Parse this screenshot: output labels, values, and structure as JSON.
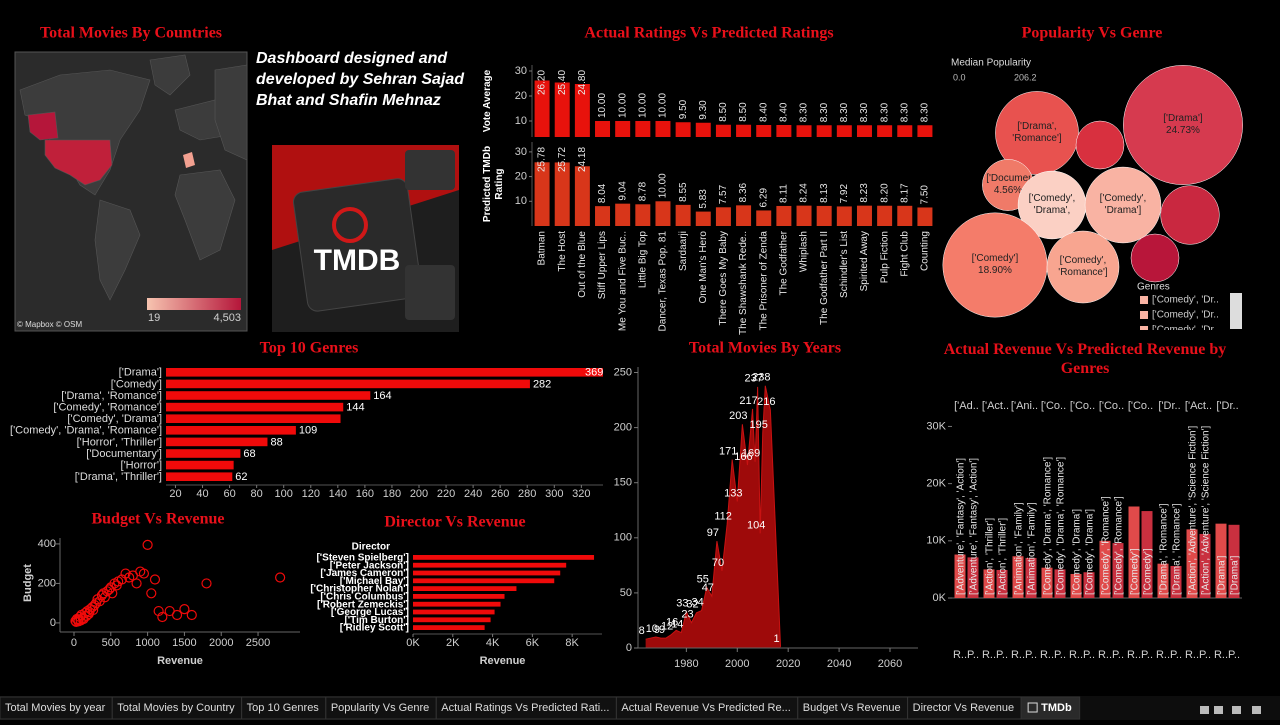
{
  "credit": "Dashboard designed and developed by Sehran Sajad Bhat and Shafin Mehnaz",
  "logo_text": "TMDB",
  "tabs": [
    "Total Movies by year",
    "Total Movies by Country",
    "Top 10 Genres",
    "Popularity Vs Genre",
    "Actual Ratings Vs Predicted Rati...",
    "Actual Revenue Vs Predicted Re...",
    "Budget Vs Revenue",
    "Director Vs Revenue",
    "TMDb"
  ],
  "active_tab": 8,
  "chart_data": [
    {
      "type": "map",
      "title": "Total Movies By Countries",
      "legend_ticks": [
        19,
        {
          "value": 4503,
          "label": "4,503"
        }
      ],
      "legend_colors": [
        "#f7c4b0",
        "#b5163a"
      ],
      "attribution": "© Mapbox © OSM"
    },
    {
      "type": "paired_bar",
      "title": "Actual Ratings Vs Predicted Ratings",
      "categories": [
        "Batman",
        "The Host",
        "Out of the Blue",
        "Stiff Upper Lips",
        "Me You and Five Buc..",
        "Little Big Top",
        "Dancer, Texas Pop. 81",
        "Sardaarji",
        "One Man's Hero",
        "There Goes My Baby",
        "The Shawshank Rede..",
        "The Prisoner of Zenda",
        "The Godfather",
        "Whiplash",
        "The Godfather Part II",
        "Schindler's List",
        "Spirited Away",
        "Pulp Fiction",
        "Fight Club",
        "Counting"
      ],
      "series": [
        {
          "name": "Vote Average",
          "color": "#e8120c",
          "ylim": [
            3.6,
            32.4
          ],
          "yticks": [
            10,
            20,
            30
          ],
          "values": [
            26.2,
            25.4,
            24.8,
            10,
            10,
            10,
            10,
            9.5,
            9.3,
            8.5,
            8.5,
            8.4,
            8.4,
            8.3,
            8.3,
            8.3,
            8.3,
            8.3,
            8.3,
            8.3
          ],
          "value_labels": [
            "26.20",
            "25.40",
            "24.80",
            "10.00",
            "10.00",
            "10.00",
            "10.00",
            "9.50",
            "9.30",
            "8.50",
            "8.50",
            "8.40",
            "8.40",
            "8.30",
            "8.30",
            "8.30",
            "8.30",
            "8.30",
            "8.30",
            "8.30"
          ]
        },
        {
          "name": "Predicted TMDb Rating",
          "color": "#d8361a",
          "ylim": [
            0,
            34
          ],
          "yticks": [
            10,
            20,
            30
          ],
          "values": [
            25.78,
            25.72,
            24.18,
            8.04,
            9.04,
            8.78,
            10,
            8.55,
            5.83,
            7.57,
            8.36,
            6.29,
            8.11,
            8.24,
            8.13,
            7.92,
            8.23,
            8.2,
            8.17,
            7.5
          ],
          "value_labels": [
            "25.78",
            "25.72",
            "24.18",
            "8.04",
            "9.04",
            "8.78",
            "10.00",
            "8.55",
            "5.83",
            "7.57",
            "8.36",
            "6.29",
            "8.11",
            "8.24",
            "8.13",
            "7.92",
            "8.23",
            "8.20",
            "8.17",
            "7.50"
          ]
        }
      ]
    },
    {
      "type": "bubble",
      "title": "Popularity Vs Genre",
      "color_legend_title": "Median Popularity",
      "color_legend_ticks": [
        {
          "value": 0,
          "label": "0.0"
        },
        206.2
      ],
      "categories": [
        "['Drama']",
        "['Drama', 'Romance']",
        null,
        "['Documentary']",
        "['Comedy', 'Drama',",
        "['Comedy', 'Drama']",
        null,
        "['Comedy']",
        "['Comedy', 'Romance']",
        null
      ],
      "values": [
        24.73,
        12,
        4,
        4.56,
        8,
        10,
        6,
        18.9,
        9,
        4
      ],
      "value_labels": [
        "24.73%",
        null,
        null,
        "4.56%",
        null,
        null,
        null,
        "18.90%",
        null,
        null
      ],
      "colors": [
        "#d63a4f",
        "#e8524f",
        "#d8303f",
        "#f07a68",
        "#fbd0c4",
        "#f9b3a3",
        "#c92840",
        "#f47c6a",
        "#f8a590",
        "#b8163a"
      ],
      "legend_title": "Genres",
      "legend_items": [
        "['Comedy', 'Dr..",
        "['Comedy', 'Dr..",
        "['Comedy', 'Dr.."
      ]
    },
    {
      "type": "hbar",
      "title": "Top 10 Genres",
      "color": "#f00a0a",
      "categories": [
        "['Drama']",
        "['Comedy']",
        "['Drama', 'Romance']",
        "['Comedy', 'Romance']",
        "['Comedy', 'Drama']",
        "['Comedy', 'Drama', 'Romance']",
        "['Horror', 'Thriller']",
        "['Documentary']",
        "['Horror']",
        "['Drama', 'Thriller']"
      ],
      "values": [
        369,
        282,
        164,
        144,
        142,
        109,
        88,
        68,
        63,
        62
      ],
      "value_labels": [
        "369",
        "282",
        "164",
        "144",
        null,
        "109",
        "88",
        "68",
        null,
        "62"
      ],
      "xlim": [
        13,
        336
      ],
      "xticks": [
        20,
        40,
        60,
        80,
        100,
        120,
        140,
        160,
        180,
        200,
        220,
        240,
        260,
        280,
        300,
        320
      ]
    },
    {
      "type": "area",
      "title": "Total Movies By Years",
      "color": "#9e0a0a",
      "x": [
        1964,
        1968,
        1970,
        1972,
        1974,
        1976,
        1978,
        1980,
        1982,
        1984,
        1986,
        1988,
        1990,
        1992,
        1994,
        1996,
        1998,
        2000,
        2002,
        2004,
        2006,
        2007,
        2008,
        2009,
        2010,
        2011,
        2013,
        2017
      ],
      "values": [
        8,
        10,
        9,
        9,
        12,
        16,
        14,
        33,
        23,
        32,
        34,
        55,
        47,
        97,
        70,
        112,
        171,
        133,
        203,
        166,
        217,
        169,
        237,
        104,
        195,
        238,
        216,
        1
      ],
      "xlim": [
        1961,
        2071
      ],
      "xticks": [
        1980,
        2000,
        2020,
        2040,
        2060
      ],
      "ylim": [
        0,
        255
      ],
      "yticks": [
        0,
        50,
        100,
        150,
        200,
        250
      ]
    },
    {
      "type": "grouped_bar",
      "title": "Actual Revenue Vs Predicted Revenue by Genres",
      "categories": [
        "['Ad..",
        "['Act..",
        "['Ani..",
        "['Co..",
        "['Co..",
        "['Co..",
        "['Co..",
        "['Dr..",
        "['Act..",
        "['Dr.."
      ],
      "genre_labels": [
        "['Adventure', 'Fantasy', 'Action']",
        "['Action', 'Thriller']",
        "['Animation', 'Family']",
        "['Comedy', 'Drama', 'Romance']",
        "['Comedy', 'Drama']",
        "['Comedy', 'Romance']",
        "['Comedy']",
        "['Drama', 'Romance']",
        "['Action', 'Adventure', 'Science Fiction']",
        "['Drama']"
      ],
      "series": [
        {
          "name": "R..",
          "color": "#e04a4a",
          "values": [
            7600,
            5000,
            7300,
            5300,
            4200,
            10000,
            16000,
            6000,
            12000,
            13000
          ]
        },
        {
          "name": "P..",
          "color": "#c9303f",
          "values": [
            7100,
            4900,
            7000,
            5000,
            4500,
            9600,
            15200,
            5600,
            11200,
            12800
          ]
        }
      ],
      "ylim": [
        0,
        32000
      ],
      "yticks": [
        {
          "value": 0,
          "label": "0K"
        },
        {
          "value": 10000,
          "label": "10K"
        },
        {
          "value": 20000,
          "label": "20K"
        },
        {
          "value": 30000,
          "label": "30K"
        }
      ]
    },
    {
      "type": "scatter",
      "title": "Budget Vs Revenue",
      "color": "#f00a0a",
      "x_label": "Revenue",
      "y_label": "Budget",
      "x": [
        20,
        40,
        60,
        80,
        100,
        120,
        150,
        180,
        200,
        220,
        250,
        280,
        300,
        320,
        350,
        380,
        400,
        420,
        450,
        480,
        500,
        520,
        550,
        580,
        600,
        650,
        700,
        750,
        800,
        850,
        900,
        950,
        1000,
        1050,
        1100,
        1150,
        1200,
        1300,
        1400,
        1500,
        1600,
        1800,
        2800,
        30,
        60,
        90,
        130,
        170,
        210,
        260
      ],
      "values": [
        10,
        20,
        15,
        30,
        40,
        25,
        50,
        60,
        45,
        70,
        80,
        90,
        100,
        120,
        110,
        140,
        150,
        130,
        160,
        170,
        180,
        150,
        200,
        190,
        210,
        220,
        250,
        230,
        240,
        200,
        260,
        250,
        395,
        150,
        220,
        60,
        30,
        60,
        40,
        70,
        40,
        200,
        230,
        5,
        8,
        12,
        20,
        35,
        55,
        65
      ],
      "xlim": [
        -190,
        3070
      ],
      "xticks": [
        0,
        500,
        1000,
        1500,
        2000,
        2500
      ],
      "ylim": [
        -46,
        430
      ],
      "yticks": [
        0,
        200,
        400
      ]
    },
    {
      "type": "hbar",
      "title": "Director Vs Revenue",
      "color": "#f00a0a",
      "header": "Director",
      "x_label": "Revenue",
      "categories": [
        "['Steven Spielberg']",
        "['Peter Jackson']",
        "['James Cameron']",
        "['Michael Bay']",
        "['Christopher Nolan']",
        "['Chris Columbus']",
        "['Robert Zemeckis']",
        "['George Lucas']",
        "['Tim Burton']",
        "['Ridley Scott']"
      ],
      "values": [
        9100,
        7700,
        7400,
        7100,
        5200,
        4600,
        4400,
        4100,
        3900,
        3600
      ],
      "xlim": [
        0,
        9500
      ],
      "xticks": [
        {
          "value": 0,
          "label": "0K"
        },
        {
          "value": 2000,
          "label": "2K"
        },
        {
          "value": 4000,
          "label": "4K"
        },
        {
          "value": 6000,
          "label": "6K"
        },
        {
          "value": 8000,
          "label": "8K"
        }
      ]
    }
  ]
}
